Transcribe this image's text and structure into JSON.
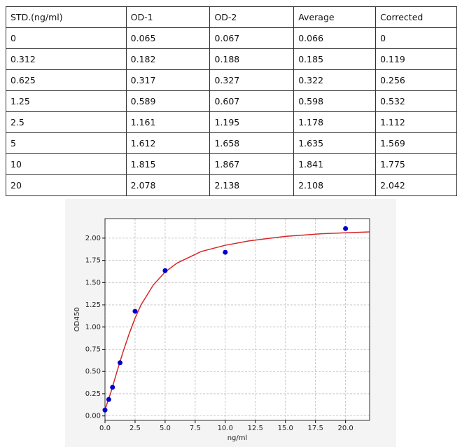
{
  "table": {
    "header": [
      "STD.(ng/ml)",
      "OD-1",
      "OD-2",
      "Average",
      "Corrected"
    ],
    "rows": [
      [
        "0",
        "0.065",
        "0.067",
        "0.066",
        "0"
      ],
      [
        "0.312",
        "0.182",
        "0.188",
        "0.185",
        "0.119"
      ],
      [
        "0.625",
        "0.317",
        "0.327",
        "0.322",
        "0.256"
      ],
      [
        "1.25",
        "0.589",
        "0.607",
        "0.598",
        "0.532"
      ],
      [
        "2.5",
        "1.161",
        "1.195",
        "1.178",
        "1.112"
      ],
      [
        "5",
        "1.612",
        "1.658",
        "1.635",
        "1.569"
      ],
      [
        "10",
        "1.815",
        "1.867",
        "1.841",
        "1.775"
      ],
      [
        "20",
        "2.078",
        "2.138",
        "2.108",
        "2.042"
      ]
    ]
  },
  "chart_data": {
    "type": "scatter",
    "xlabel": "ng/ml",
    "ylabel": "OD450",
    "xlim": [
      0,
      22
    ],
    "ylim": [
      -0.05,
      2.22
    ],
    "grid": true,
    "xticks": [
      {
        "value": 0,
        "label": "0.0"
      },
      2.5,
      {
        "value": 5,
        "label": "5.0"
      },
      7.5,
      {
        "value": 10,
        "label": "10.0"
      },
      12.5,
      {
        "value": 15,
        "label": "15.0"
      },
      17.5,
      {
        "value": 20,
        "label": "20.0"
      }
    ],
    "yticks": [
      {
        "value": 0,
        "label": "0.00"
      },
      0.25,
      {
        "value": 0.5,
        "label": "0.50"
      },
      0.75,
      {
        "value": 1,
        "label": "1.00"
      },
      1.25,
      {
        "value": 1.5,
        "label": "1.50"
      },
      1.75,
      {
        "value": 2,
        "label": "2.00"
      }
    ],
    "series": [
      {
        "type": "scatter",
        "color": "#0000cc",
        "x": [
          0,
          0.312,
          0.625,
          1.25,
          2.5,
          5,
          10,
          20
        ],
        "values": [
          0.066,
          0.185,
          0.322,
          0.598,
          1.178,
          1.635,
          1.841,
          2.108
        ]
      },
      {
        "type": "line",
        "color": "#d62728",
        "x": [
          0,
          0.5,
          1,
          1.5,
          2,
          2.5,
          3,
          4,
          5,
          6,
          8,
          10,
          12,
          15,
          18,
          20,
          22
        ],
        "values": [
          0.07,
          0.27,
          0.5,
          0.72,
          0.92,
          1.1,
          1.25,
          1.47,
          1.62,
          1.72,
          1.85,
          1.92,
          1.97,
          2.02,
          2.05,
          2.06,
          2.07
        ]
      }
    ]
  }
}
